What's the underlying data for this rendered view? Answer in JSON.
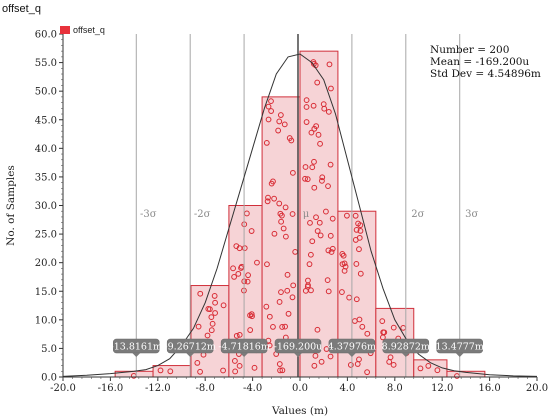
{
  "window_title": "offset_q",
  "chart_data": {
    "type": "bar",
    "title": "offset_q",
    "xlabel": "Values (m)",
    "ylabel": "No. of Samples",
    "xlim": [
      -20.0,
      20.0
    ],
    "ylim": [
      0.0,
      60.0
    ],
    "x_ticks": [
      "-20.0",
      "-16.0",
      "-12.0",
      "-8.0",
      "-4.0",
      "0.0",
      "4.0",
      "8.0",
      "12.0",
      "16.0",
      "20.0"
    ],
    "y_ticks": [
      "0.0",
      "5.0",
      "10.0",
      "15.0",
      "20.0",
      "25.0",
      "30.0",
      "35.0",
      "40.0",
      "45.0",
      "50.0",
      "55.0",
      "60.0"
    ],
    "legend": {
      "label": "offset_q",
      "color": "#e8323c",
      "position": "top-left"
    },
    "bins": [
      {
        "x0": -15.6,
        "x1": -12.4,
        "count": 1
      },
      {
        "x0": -12.4,
        "x1": -9.2,
        "count": 2
      },
      {
        "x0": -9.2,
        "x1": -6.0,
        "count": 16
      },
      {
        "x0": -6.0,
        "x1": -3.2,
        "count": 30
      },
      {
        "x0": -3.2,
        "x1": 0.0,
        "count": 49
      },
      {
        "x0": 0.0,
        "x1": 3.2,
        "count": 57
      },
      {
        "x0": 3.2,
        "x1": 6.4,
        "count": 29
      },
      {
        "x0": 6.4,
        "x1": 9.6,
        "count": 12
      },
      {
        "x0": 9.6,
        "x1": 12.4,
        "count": 3
      },
      {
        "x0": 12.4,
        "x1": 15.6,
        "count": 1
      }
    ],
    "stats": {
      "number": "Number = 200",
      "mean": "Mean = -169.200u",
      "std_dev": "Std Dev = 4.54896m"
    },
    "sigma_markers": [
      {
        "label": "-3σ",
        "x": -13.8161,
        "value_label": "-13.8161m"
      },
      {
        "label": "-2σ",
        "x": -9.26712,
        "value_label": "-9.26712m"
      },
      {
        "label": "-σ",
        "x": -4.71816,
        "value_label": "-4.71816m"
      },
      {
        "label": "μ",
        "x": -0.1692,
        "value_label": "-169.200u"
      },
      {
        "label": "σ",
        "x": 4.37976,
        "value_label": "4.37976m"
      },
      {
        "label": "2σ",
        "x": 8.92872,
        "value_label": "8.92872m"
      },
      {
        "label": "3σ",
        "x": 13.4777,
        "value_label": "13.4777m"
      }
    ],
    "distribution_curve": {
      "x": [
        -20,
        -18,
        -16,
        -14,
        -13,
        -12,
        -11,
        -10,
        -9,
        -8,
        -7,
        -6,
        -5,
        -4,
        -3,
        -2,
        -1,
        0,
        1,
        2,
        3,
        4,
        5,
        6,
        7,
        8,
        9,
        10,
        11,
        12,
        13,
        14,
        16,
        18,
        20
      ],
      "y": [
        0.1,
        0.3,
        0.6,
        1.0,
        1.3,
        2.0,
        3.2,
        5.5,
        8.5,
        13,
        19,
        26,
        33,
        40,
        47,
        53,
        56,
        56.5,
        55,
        52,
        46,
        38,
        30,
        22,
        15.5,
        10,
        6.5,
        4,
        2.5,
        1.6,
        1.1,
        0.8,
        0.4,
        0.2,
        0.1
      ]
    },
    "grid": false,
    "colors": {
      "bar_fill": "#f6d3d6",
      "bar_stroke": "#d02f3a",
      "marker": "#d82c35",
      "curve": "#333333",
      "sigma_line": "#a7a7a7",
      "mean_line": "#3a3a3a"
    }
  }
}
